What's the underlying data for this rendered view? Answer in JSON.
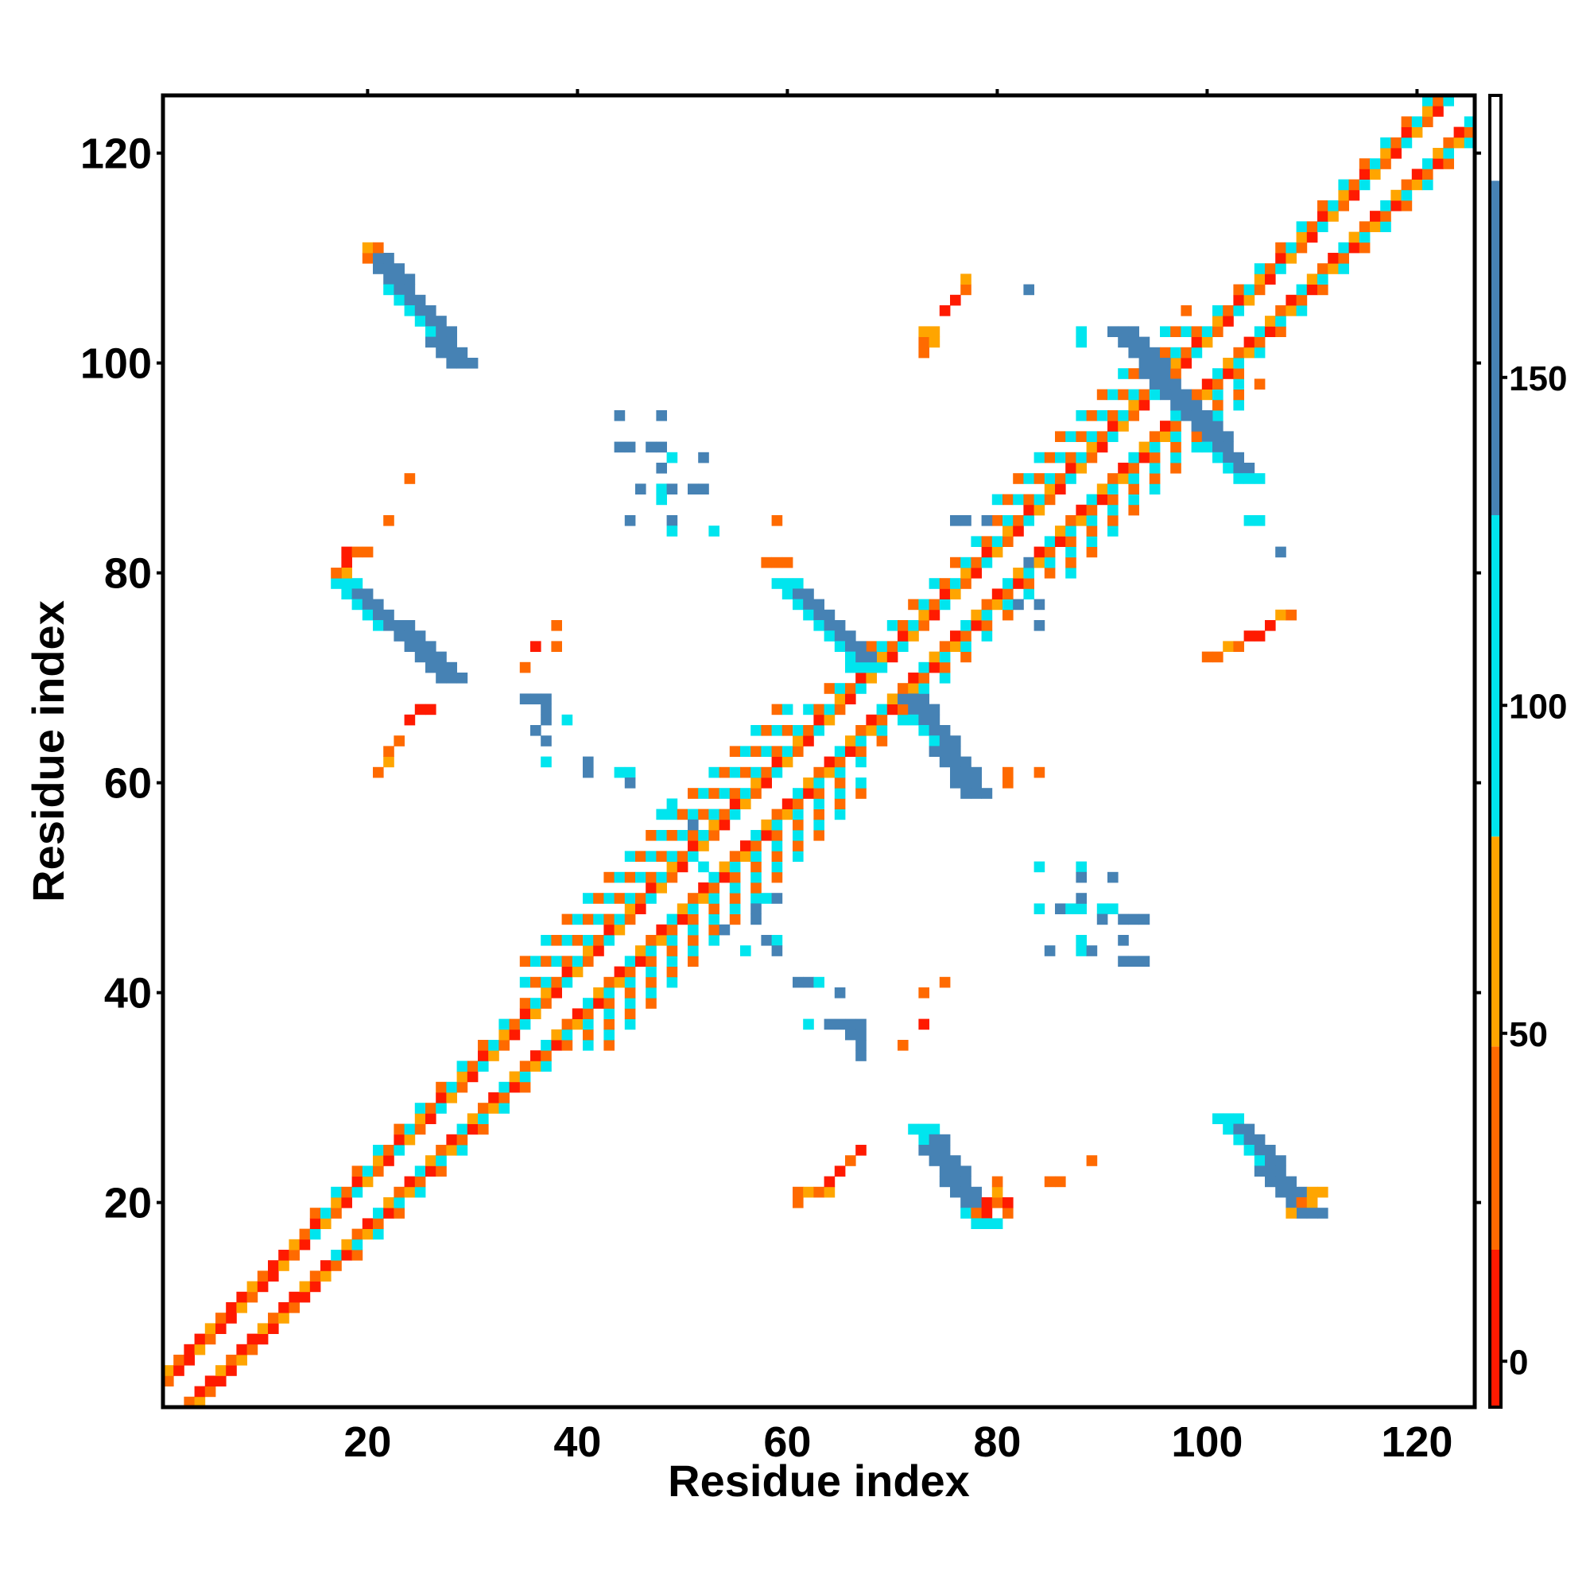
{
  "chart_data": {
    "type": "heatmap",
    "title": "",
    "xlabel": "Residue index",
    "ylabel": "Residue index",
    "xlim": [
      1,
      125
    ],
    "ylim": [
      1,
      125
    ],
    "x_ticks": [
      20,
      40,
      60,
      80,
      100,
      120
    ],
    "y_ticks": [
      20,
      40,
      60,
      80,
      100,
      120
    ],
    "colorbar": {
      "ticks": [
        0,
        50,
        100,
        150
      ],
      "range": [
        -7,
        193
      ],
      "bands": [
        {
          "from": -7,
          "to": 17,
          "color": "#ff1a00"
        },
        {
          "from": 17,
          "to": 48,
          "color": "#ff6a00"
        },
        {
          "from": 48,
          "to": 80,
          "color": "#ffa500"
        },
        {
          "from": 80,
          "to": 129,
          "color": "#00e5ee"
        },
        {
          "from": 129,
          "to": 180,
          "color": "#4682b4"
        },
        {
          "from": 180,
          "to": 193,
          "color": "#ffffff"
        }
      ]
    },
    "diagonal_band": {
      "segments": [
        {
          "from": 1,
          "to": 15,
          "halfwidth": 3,
          "palette": [
            "#ff1a00",
            "#ff6a00",
            "#ffa500",
            "#ff1a00"
          ]
        },
        {
          "from": 15,
          "to": 35,
          "halfwidth": 4,
          "palette": [
            "#ff1a00",
            "#ff6a00",
            "#ffa500",
            "#00e5ee"
          ]
        },
        {
          "from": 35,
          "to": 60,
          "halfwidth": 8,
          "palette": [
            "#ff1a00",
            "#ff6a00",
            "#ffa500",
            "#00e5ee"
          ]
        },
        {
          "from": 60,
          "to": 80,
          "halfwidth": 5,
          "palette": [
            "#ff1a00",
            "#ff6a00",
            "#ffa500",
            "#00e5ee"
          ]
        },
        {
          "from": 80,
          "to": 98,
          "halfwidth": 7,
          "palette": [
            "#ff1a00",
            "#ff6a00",
            "#ffa500",
            "#00e5ee"
          ]
        },
        {
          "from": 98,
          "to": 125,
          "halfwidth": 4,
          "palette": [
            "#ff1a00",
            "#ff6a00",
            "#ffa500",
            "#00e5ee"
          ]
        }
      ]
    },
    "off_diagonal_strands": [
      {
        "start": [
          20,
          110
        ],
        "end": [
          28,
          100
        ],
        "width": 3,
        "color": "#4682b4",
        "edge_color": "#00e5ee"
      },
      {
        "start": [
          17,
          79
        ],
        "end": [
          27,
          70
        ],
        "width": 3,
        "color": "#4682b4",
        "edge_color": "#00e5ee"
      },
      {
        "start": [
          59,
          79
        ],
        "end": [
          67,
          71
        ],
        "width": 3,
        "color": "#4682b4",
        "edge_color": "#00e5ee"
      },
      {
        "start": [
          71,
          68
        ],
        "end": [
          77,
          59
        ],
        "width": 3,
        "color": "#4682b4",
        "edge_color": "#00e5ee"
      },
      {
        "start": [
          91,
          103
        ],
        "end": [
          97,
          96
        ],
        "width": 3,
        "color": "#4682b4",
        "edge_color": "#00e5ee"
      },
      {
        "start": [
          97,
          96
        ],
        "end": [
          103,
          89
        ],
        "width": 3,
        "color": "#4682b4",
        "edge_color": "#00e5ee"
      },
      {
        "start": [
          72,
          27
        ],
        "end": [
          78,
          18
        ],
        "width": 3,
        "color": "#4682b4",
        "edge_color": "#00e5ee"
      },
      {
        "start": [
          101,
          28
        ],
        "end": [
          109,
          19
        ],
        "width": 3,
        "color": "#4682b4",
        "edge_color": "#00e5ee"
      }
    ],
    "off_diagonal_cells": [
      {
        "x": 20,
        "y": 111,
        "c": "#ffa500"
      },
      {
        "x": 21,
        "y": 111,
        "c": "#ff6a00"
      },
      {
        "x": 20,
        "y": 110,
        "c": "#ff6a00"
      },
      {
        "x": 18,
        "y": 82,
        "c": "#ff1a00"
      },
      {
        "x": 19,
        "y": 82,
        "c": "#ff6a00"
      },
      {
        "x": 20,
        "y": 82,
        "c": "#ff6a00"
      },
      {
        "x": 18,
        "y": 81,
        "c": "#ff1a00"
      },
      {
        "x": 18,
        "y": 80,
        "c": "#ffa500"
      },
      {
        "x": 17,
        "y": 80,
        "c": "#ff6a00"
      },
      {
        "x": 22,
        "y": 85,
        "c": "#ff6a00"
      },
      {
        "x": 24,
        "y": 89,
        "c": "#ff6a00"
      },
      {
        "x": 21,
        "y": 61,
        "c": "#ff6a00"
      },
      {
        "x": 22,
        "y": 62,
        "c": "#ffa500"
      },
      {
        "x": 22,
        "y": 63,
        "c": "#ff6a00"
      },
      {
        "x": 23,
        "y": 64,
        "c": "#ff6a00"
      },
      {
        "x": 24,
        "y": 66,
        "c": "#ff1a00"
      },
      {
        "x": 25,
        "y": 67,
        "c": "#ff1a00"
      },
      {
        "x": 26,
        "y": 67,
        "c": "#ff1a00"
      },
      {
        "x": 44,
        "y": 95,
        "c": "#4682b4"
      },
      {
        "x": 48,
        "y": 95,
        "c": "#4682b4"
      },
      {
        "x": 44,
        "y": 92,
        "c": "#4682b4"
      },
      {
        "x": 45,
        "y": 92,
        "c": "#4682b4"
      },
      {
        "x": 47,
        "y": 92,
        "c": "#4682b4"
      },
      {
        "x": 48,
        "y": 92,
        "c": "#4682b4"
      },
      {
        "x": 49,
        "y": 91,
        "c": "#00e5ee"
      },
      {
        "x": 52,
        "y": 91,
        "c": "#4682b4"
      },
      {
        "x": 48,
        "y": 90,
        "c": "#4682b4"
      },
      {
        "x": 46,
        "y": 88,
        "c": "#4682b4"
      },
      {
        "x": 48,
        "y": 88,
        "c": "#00e5ee"
      },
      {
        "x": 49,
        "y": 88,
        "c": "#4682b4"
      },
      {
        "x": 51,
        "y": 88,
        "c": "#4682b4"
      },
      {
        "x": 52,
        "y": 88,
        "c": "#4682b4"
      },
      {
        "x": 48,
        "y": 87,
        "c": "#00e5ee"
      },
      {
        "x": 45,
        "y": 85,
        "c": "#4682b4"
      },
      {
        "x": 49,
        "y": 85,
        "c": "#4682b4"
      },
      {
        "x": 49,
        "y": 84,
        "c": "#00e5ee"
      },
      {
        "x": 53,
        "y": 84,
        "c": "#00e5ee"
      },
      {
        "x": 38,
        "y": 75,
        "c": "#ff6a00"
      },
      {
        "x": 36,
        "y": 73,
        "c": "#ff1a00"
      },
      {
        "x": 38,
        "y": 73,
        "c": "#ff6a00"
      },
      {
        "x": 35,
        "y": 71,
        "c": "#ff6a00"
      },
      {
        "x": 35,
        "y": 68,
        "c": "#4682b4"
      },
      {
        "x": 36,
        "y": 68,
        "c": "#4682b4"
      },
      {
        "x": 37,
        "y": 68,
        "c": "#4682b4"
      },
      {
        "x": 37,
        "y": 67,
        "c": "#4682b4"
      },
      {
        "x": 37,
        "y": 66,
        "c": "#4682b4"
      },
      {
        "x": 39,
        "y": 66,
        "c": "#00e5ee"
      },
      {
        "x": 36,
        "y": 65,
        "c": "#4682b4"
      },
      {
        "x": 37,
        "y": 64,
        "c": "#4682b4"
      },
      {
        "x": 37,
        "y": 62,
        "c": "#00e5ee"
      },
      {
        "x": 41,
        "y": 62,
        "c": "#4682b4"
      },
      {
        "x": 41,
        "y": 61,
        "c": "#4682b4"
      },
      {
        "x": 44,
        "y": 61,
        "c": "#00e5ee"
      },
      {
        "x": 45,
        "y": 61,
        "c": "#00e5ee"
      },
      {
        "x": 45,
        "y": 60,
        "c": "#4682b4"
      },
      {
        "x": 59,
        "y": 85,
        "c": "#ff6a00"
      },
      {
        "x": 58,
        "y": 81,
        "c": "#ff6a00"
      },
      {
        "x": 59,
        "y": 81,
        "c": "#ff6a00"
      },
      {
        "x": 60,
        "y": 81,
        "c": "#ff6a00"
      },
      {
        "x": 73,
        "y": 102,
        "c": "#ff6a00"
      },
      {
        "x": 74,
        "y": 102,
        "c": "#ffa500"
      },
      {
        "x": 74,
        "y": 103,
        "c": "#ffa500"
      },
      {
        "x": 73,
        "y": 103,
        "c": "#ffa500"
      },
      {
        "x": 73,
        "y": 101,
        "c": "#ff6a00"
      },
      {
        "x": 75,
        "y": 105,
        "c": "#ff1a00"
      },
      {
        "x": 76,
        "y": 106,
        "c": "#ff1a00"
      },
      {
        "x": 77,
        "y": 107,
        "c": "#ff6a00"
      },
      {
        "x": 77,
        "y": 108,
        "c": "#ffa500"
      },
      {
        "x": 83,
        "y": 107,
        "c": "#4682b4"
      },
      {
        "x": 88,
        "y": 103,
        "c": "#00e5ee"
      },
      {
        "x": 88,
        "y": 102,
        "c": "#00e5ee"
      },
      {
        "x": 76,
        "y": 85,
        "c": "#4682b4"
      },
      {
        "x": 77,
        "y": 85,
        "c": "#4682b4"
      },
      {
        "x": 79,
        "y": 85,
        "c": "#4682b4"
      },
      {
        "x": 83,
        "y": 81,
        "c": "#4682b4"
      },
      {
        "x": 82,
        "y": 77,
        "c": "#4682b4"
      },
      {
        "x": 84,
        "y": 77,
        "c": "#4682b4"
      },
      {
        "x": 84,
        "y": 75,
        "c": "#4682b4"
      },
      {
        "x": 104,
        "y": 85,
        "c": "#00e5ee"
      },
      {
        "x": 105,
        "y": 85,
        "c": "#00e5ee"
      },
      {
        "x": 107,
        "y": 82,
        "c": "#4682b4"
      },
      {
        "x": 100,
        "y": 72,
        "c": "#ff6a00"
      },
      {
        "x": 101,
        "y": 72,
        "c": "#ff6a00"
      },
      {
        "x": 102,
        "y": 73,
        "c": "#ffa500"
      },
      {
        "x": 103,
        "y": 73,
        "c": "#ff6a00"
      },
      {
        "x": 104,
        "y": 74,
        "c": "#ff1a00"
      },
      {
        "x": 105,
        "y": 74,
        "c": "#ff1a00"
      },
      {
        "x": 106,
        "y": 75,
        "c": "#ff1a00"
      },
      {
        "x": 107,
        "y": 76,
        "c": "#ffa500"
      },
      {
        "x": 108,
        "y": 76,
        "c": "#ff6a00"
      },
      {
        "x": 81,
        "y": 61,
        "c": "#ff6a00"
      },
      {
        "x": 81,
        "y": 60,
        "c": "#ff6a00"
      },
      {
        "x": 84,
        "y": 61,
        "c": "#ff6a00"
      },
      {
        "x": 84,
        "y": 52,
        "c": "#00e5ee"
      },
      {
        "x": 88,
        "y": 52,
        "c": "#00e5ee"
      },
      {
        "x": 88,
        "y": 51,
        "c": "#4682b4"
      },
      {
        "x": 91,
        "y": 51,
        "c": "#4682b4"
      },
      {
        "x": 86,
        "y": 48,
        "c": "#4682b4"
      },
      {
        "x": 84,
        "y": 48,
        "c": "#00e5ee"
      },
      {
        "x": 87,
        "y": 48,
        "c": "#00e5ee"
      },
      {
        "x": 88,
        "y": 48,
        "c": "#00e5ee"
      },
      {
        "x": 90,
        "y": 48,
        "c": "#00e5ee"
      },
      {
        "x": 91,
        "y": 48,
        "c": "#00e5ee"
      },
      {
        "x": 88,
        "y": 49,
        "c": "#4682b4"
      },
      {
        "x": 92,
        "y": 47,
        "c": "#4682b4"
      },
      {
        "x": 93,
        "y": 47,
        "c": "#4682b4"
      },
      {
        "x": 94,
        "y": 47,
        "c": "#4682b4"
      },
      {
        "x": 90,
        "y": 47,
        "c": "#4682b4"
      },
      {
        "x": 88,
        "y": 45,
        "c": "#00e5ee"
      },
      {
        "x": 92,
        "y": 45,
        "c": "#4682b4"
      },
      {
        "x": 85,
        "y": 44,
        "c": "#4682b4"
      },
      {
        "x": 88,
        "y": 44,
        "c": "#00e5ee"
      },
      {
        "x": 89,
        "y": 44,
        "c": "#4682b4"
      },
      {
        "x": 92,
        "y": 43,
        "c": "#4682b4"
      },
      {
        "x": 93,
        "y": 43,
        "c": "#4682b4"
      },
      {
        "x": 94,
        "y": 43,
        "c": "#4682b4"
      },
      {
        "x": 57,
        "y": 48,
        "c": "#4682b4"
      },
      {
        "x": 57,
        "y": 47,
        "c": "#4682b4"
      },
      {
        "x": 56,
        "y": 44,
        "c": "#00e5ee"
      },
      {
        "x": 58,
        "y": 45,
        "c": "#4682b4"
      },
      {
        "x": 59,
        "y": 45,
        "c": "#00e5ee"
      },
      {
        "x": 59,
        "y": 44,
        "c": "#4682b4"
      },
      {
        "x": 61,
        "y": 41,
        "c": "#4682b4"
      },
      {
        "x": 62,
        "y": 41,
        "c": "#4682b4"
      },
      {
        "x": 63,
        "y": 41,
        "c": "#00e5ee"
      },
      {
        "x": 65,
        "y": 40,
        "c": "#4682b4"
      },
      {
        "x": 62,
        "y": 37,
        "c": "#00e5ee"
      },
      {
        "x": 64,
        "y": 37,
        "c": "#4682b4"
      },
      {
        "x": 65,
        "y": 37,
        "c": "#4682b4"
      },
      {
        "x": 66,
        "y": 37,
        "c": "#4682b4"
      },
      {
        "x": 67,
        "y": 37,
        "c": "#4682b4"
      },
      {
        "x": 66,
        "y": 36,
        "c": "#4682b4"
      },
      {
        "x": 67,
        "y": 36,
        "c": "#4682b4"
      },
      {
        "x": 67,
        "y": 35,
        "c": "#4682b4"
      },
      {
        "x": 67,
        "y": 34,
        "c": "#4682b4"
      },
      {
        "x": 71,
        "y": 35,
        "c": "#ff6a00"
      },
      {
        "x": 73,
        "y": 37,
        "c": "#ff1a00"
      },
      {
        "x": 73,
        "y": 40,
        "c": "#ff6a00"
      },
      {
        "x": 75,
        "y": 41,
        "c": "#ff6a00"
      },
      {
        "x": 61,
        "y": 21,
        "c": "#ff6a00"
      },
      {
        "x": 62,
        "y": 21,
        "c": "#ffa500"
      },
      {
        "x": 63,
        "y": 21,
        "c": "#ff6a00"
      },
      {
        "x": 64,
        "y": 21,
        "c": "#ffa500"
      },
      {
        "x": 61,
        "y": 20,
        "c": "#ff6a00"
      },
      {
        "x": 64,
        "y": 22,
        "c": "#ff1a00"
      },
      {
        "x": 65,
        "y": 23,
        "c": "#ff1a00"
      },
      {
        "x": 66,
        "y": 24,
        "c": "#ff6a00"
      },
      {
        "x": 67,
        "y": 25,
        "c": "#ff1a00"
      },
      {
        "x": 79,
        "y": 20,
        "c": "#ff1a00"
      },
      {
        "x": 80,
        "y": 20,
        "c": "#ff6a00"
      },
      {
        "x": 78,
        "y": 19,
        "c": "#ff6a00"
      },
      {
        "x": 79,
        "y": 19,
        "c": "#ff1a00"
      },
      {
        "x": 80,
        "y": 21,
        "c": "#ffa500"
      },
      {
        "x": 80,
        "y": 22,
        "c": "#ff6a00"
      },
      {
        "x": 81,
        "y": 19,
        "c": "#ff6a00"
      },
      {
        "x": 81,
        "y": 20,
        "c": "#ff1a00"
      },
      {
        "x": 85,
        "y": 22,
        "c": "#ff6a00"
      },
      {
        "x": 86,
        "y": 22,
        "c": "#ff6a00"
      },
      {
        "x": 89,
        "y": 24,
        "c": "#ff6a00"
      },
      {
        "x": 110,
        "y": 21,
        "c": "#ffa500"
      },
      {
        "x": 111,
        "y": 21,
        "c": "#ffa500"
      },
      {
        "x": 109,
        "y": 20,
        "c": "#ff6a00"
      },
      {
        "x": 110,
        "y": 20,
        "c": "#ffa500"
      },
      {
        "x": 108,
        "y": 19,
        "c": "#ffa500"
      },
      {
        "x": 58,
        "y": 49,
        "c": "#00e5ee"
      },
      {
        "x": 59,
        "y": 49,
        "c": "#4682b4"
      },
      {
        "x": 55,
        "y": 48,
        "c": "#00e5ee"
      },
      {
        "x": 54,
        "y": 46,
        "c": "#4682b4"
      },
      {
        "x": 52,
        "y": 52,
        "c": "#00e5ee"
      },
      {
        "x": 48,
        "y": 57,
        "c": "#00e5ee"
      },
      {
        "x": 49,
        "y": 58,
        "c": "#00e5ee"
      },
      {
        "x": 51,
        "y": 56,
        "c": "#4682b4"
      }
    ]
  }
}
